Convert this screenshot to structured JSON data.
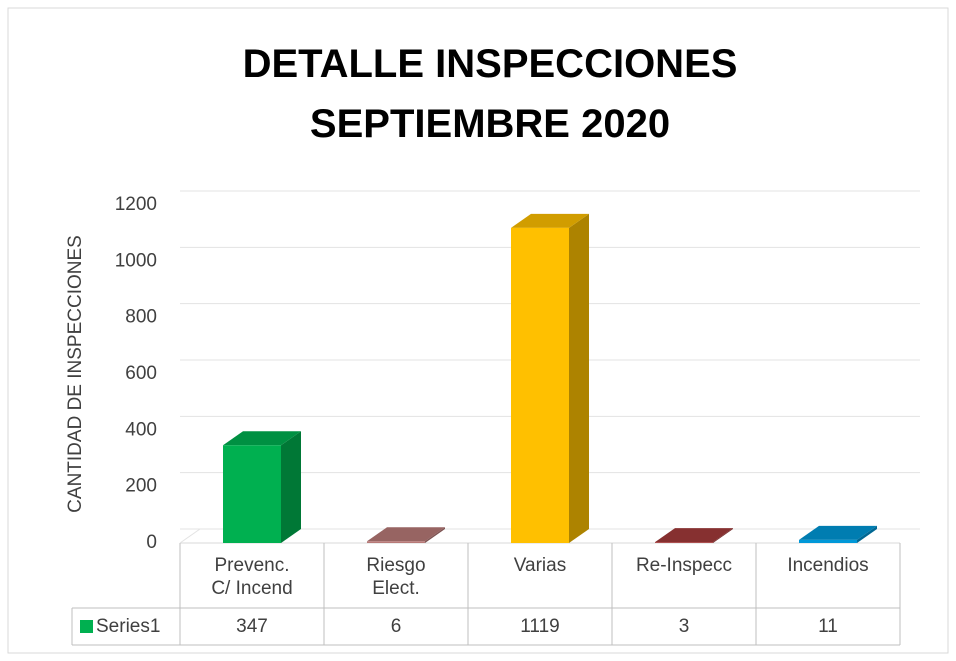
{
  "chart_data": {
    "type": "bar3d",
    "title": "DETALLE INSPECCIONES\nSEPTIEMBRE 2020",
    "y_label": "CANTIDAD DE INSPECCIONES",
    "categories": [
      "Prevenc.\nC/ Incend",
      "Riesgo\nElect.",
      "Varias",
      "Re-Inspecc",
      "Incendios"
    ],
    "series": [
      {
        "name": "Series1",
        "color": "#00b050",
        "values": [
          347,
          6,
          1119,
          3,
          11
        ]
      }
    ],
    "point_colors": [
      "#00b050",
      "#b87a78",
      "#ffc000",
      "#a33a3a",
      "#0098d8"
    ],
    "ylim": [
      0,
      1200
    ],
    "yticks": [
      0,
      200,
      400,
      600,
      800,
      1000,
      1200
    ],
    "grid": true
  }
}
